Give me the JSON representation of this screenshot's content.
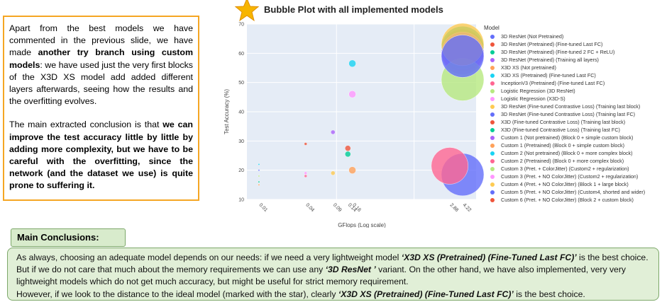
{
  "left_text": {
    "p1_a": "Apart from the best models we have commented in the previous slide, we have made ",
    "p1_b": "another try branch using custom models",
    "p1_c": ": we have used just the very first blocks of the X3D XS model add added different layers afterwards, seeing how the results and the overfitting evolves.",
    "p2_a": "The main extracted conclusion is that ",
    "p2_b": "we can improve the test accuracy little by little by adding more complexity, but we have to be careful with the overfitting, since the network (and the dataset we use) is quite prone to suffering it."
  },
  "chart_data": {
    "type": "scatter",
    "title": "Bubble Plot with all implemented models",
    "xlabel": "GFlops (Log scale)",
    "ylabel": "Test Accuracy (%)",
    "x_scale": "log",
    "ylim": [
      10,
      70
    ],
    "y_ticks": [
      10,
      20,
      30,
      40,
      50,
      60,
      70
    ],
    "x_ticks": [
      "0.01",
      "0.04",
      "0.09",
      "0.14",
      "0.16",
      "2.88",
      "4.22"
    ],
    "legend_title": "Model",
    "legend_position": "right",
    "series": [
      {
        "name": "3D ResNet (Not Pretrained)",
        "color": "#636efa",
        "x": 4.22,
        "y": 18.5,
        "size": 30
      },
      {
        "name": "3D ResNet (Pretrained) (Fine-tuned Last FC)",
        "color": "#ef553b",
        "x": 4.22,
        "y": 61,
        "size": 30
      },
      {
        "name": "3D ResNet (Pretrained) (Fine-tuned 2 FC + ReLU)",
        "color": "#00cc96",
        "x": 4.22,
        "y": 62,
        "size": 30
      },
      {
        "name": "3D ResNet (Pretrained) (Training all layers)",
        "color": "#ab63fa",
        "x": 4.22,
        "y": 60,
        "size": 30
      },
      {
        "name": "X3D XS (Not pretrained)",
        "color": "#ffa15a",
        "x": 0.16,
        "y": 20,
        "size": 5
      },
      {
        "name": "X3D XS (Pretrained) (Fine-tuned Last FC)",
        "color": "#19d3f3",
        "x": 0.16,
        "y": 56.5,
        "size": 5
      },
      {
        "name": "InceptionV3 (Pretrained) (Fine-tuned Last FC)",
        "color": "#ff6692",
        "x": 2.88,
        "y": 21.5,
        "size": 26
      },
      {
        "name": "Logistic Regression (3D ResNet)",
        "color": "#b6e880",
        "x": 4.22,
        "y": 51,
        "size": 30
      },
      {
        "name": "Logistic Regression (X3D-S)",
        "color": "#ff97ff",
        "x": 0.16,
        "y": 46,
        "size": 5
      },
      {
        "name": "3D ResNet (Fine-tuned Contrastive Loss) (Training last block)",
        "color": "#fecb52",
        "x": 4.22,
        "y": 63,
        "size": 30
      },
      {
        "name": "3D ResNet (Fine-tuned Contrastive Loss) (Training last FC)",
        "color": "#636efa",
        "x": 4.22,
        "y": 59,
        "size": 30
      },
      {
        "name": "X3D (Fine-tuned Contrastive Loss) (Training last block)",
        "color": "#ef553b",
        "x": 0.04,
        "y": 29,
        "size": 2
      },
      {
        "name": "X3D (Fine-tuned Contrastive Loss) (Training last FC)",
        "color": "#00cc96",
        "x": 0.01,
        "y": 16,
        "size": 1
      },
      {
        "name": "Custom 1 (Not pretrained) (Block 0 + simple custom block)",
        "color": "#ab63fa",
        "x": 0.09,
        "y": 33,
        "size": 3
      },
      {
        "name": "Custom 1 (Pretrained) (Block 0 + simple custom block)",
        "color": "#ffa15a",
        "x": 0.01,
        "y": 15,
        "size": 1
      },
      {
        "name": "Custom 2 (Not pretrained) (Block 0 + more complex block)",
        "color": "#19d3f3",
        "x": 0.01,
        "y": 22,
        "size": 1
      },
      {
        "name": "Custom 2 (Pretrained) (Block 0 + more complex block)",
        "color": "#ff6692",
        "x": 0.04,
        "y": 18,
        "size": 2
      },
      {
        "name": "Custom 3 (Pret. + ColorJitter) (Custom2 + regularization)",
        "color": "#b6e880",
        "x": 0.01,
        "y": 18,
        "size": 1
      },
      {
        "name": "Custom 3 (Pret. + NO ColorJitter) (Custom2 + regularization)",
        "color": "#ff97ff",
        "x": 0.04,
        "y": 19,
        "size": 2
      },
      {
        "name": "Custom 4 (Pret. + NO ColorJitter) (Block 1 + large block)",
        "color": "#fecb52",
        "x": 0.09,
        "y": 19,
        "size": 3
      },
      {
        "name": "Custom 5 (Pret. + NO ColorJitter) (Custom4, shorted and wider)",
        "color": "#636efa",
        "x": 0.01,
        "y": 20,
        "size": 1
      },
      {
        "name": "Custom 6 (Pret. + NO ColorJitter) (Block 2 + custom block)",
        "color": "#ef553b",
        "x": 0.14,
        "y": 27.5,
        "size": 4
      },
      {
        "name": "",
        "color": "#00cc96",
        "x": 0.14,
        "y": 25.5,
        "size": 4
      }
    ]
  },
  "conclusions": {
    "label": "Main Conclusions:",
    "l1_a": "As always, choosing an adequate model depends on our needs: if we need a very lightweight model ",
    "l1_b": "‘X3D XS (Pretrained) (Fine-Tuned Last FC)’",
    "l1_c": " is the best choice. But if we do not care that much about the memory requirements we can use any ",
    "l1_d": "‘3D ResNet ’",
    "l1_e": " variant. On the other hand, we have also implemented, very very lightweight models which do not get much accuracy, but might be useful for strict memory requirement.",
    "l2_a": "However, if we look to the distance to the ideal model (marked with the star), clearly ",
    "l2_b": "‘X3D XS (Pretrained) (Fine-Tuned Last FC)’",
    "l2_c": "  is the best choice."
  }
}
